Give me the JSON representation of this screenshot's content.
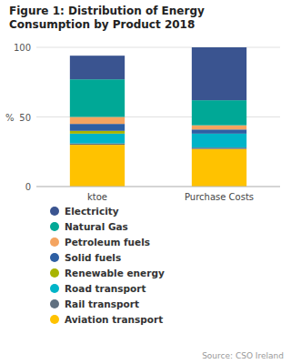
{
  "chart_data": {
    "type": "bar",
    "stacked": true,
    "title": "Figure 1: Distribution of Energy\nConsumption by Product 2018",
    "categories": [
      "ktoe",
      "Purchase Costs"
    ],
    "series": [
      {
        "name": "Electricity",
        "color": "#3a5490",
        "values": [
          17,
          38
        ]
      },
      {
        "name": "Natural Gas",
        "color": "#00a896",
        "values": [
          27,
          18
        ]
      },
      {
        "name": "Petroleum fuels",
        "color": "#f4a460",
        "values": [
          5,
          3
        ]
      },
      {
        "name": "Solid fuels",
        "color": "#2e5fa3",
        "values": [
          5,
          3
        ]
      },
      {
        "name": "Renewable energy",
        "color": "#a8b400",
        "values": [
          2,
          0
        ]
      },
      {
        "name": "Road transport",
        "color": "#00b4c8",
        "values": [
          7,
          10
        ]
      },
      {
        "name": "Rail transport",
        "color": "#607080",
        "values": [
          1,
          1
        ]
      },
      {
        "name": "Aviation transport",
        "color": "#ffc200",
        "values": [
          30,
          27
        ]
      }
    ],
    "ylabel": "%",
    "ylim": [
      0,
      100
    ],
    "yticks": [
      0,
      50,
      100
    ],
    "grid": true,
    "legend": "bottom",
    "source": "Source: CSO Ireland"
  }
}
